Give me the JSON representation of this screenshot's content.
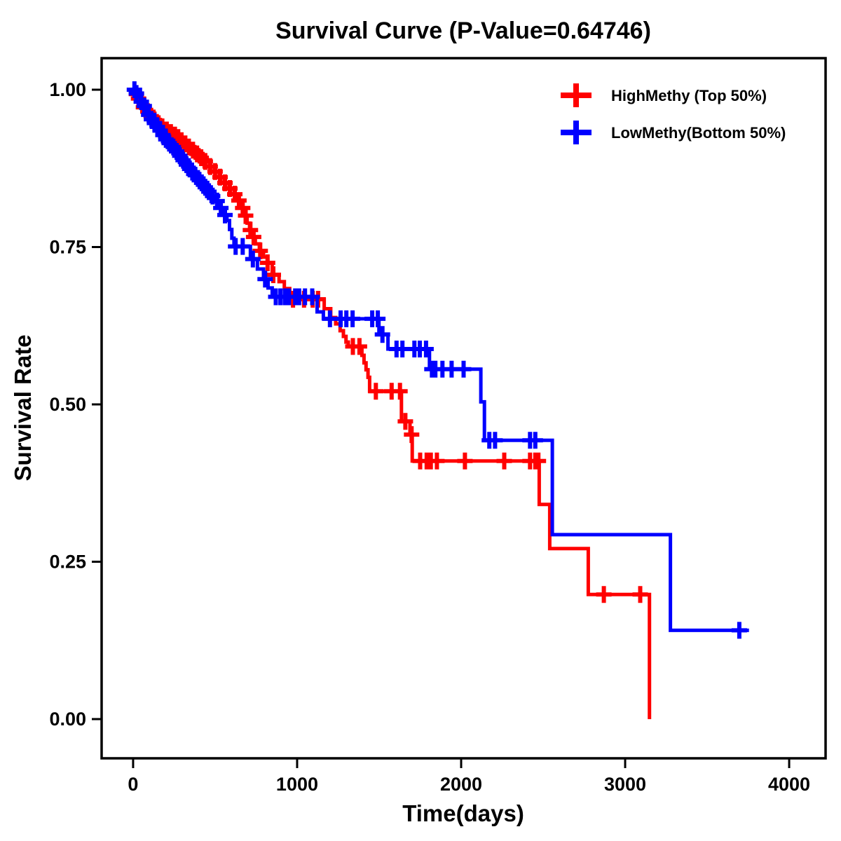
{
  "page": {
    "background": "#FFFFFF"
  },
  "chart_data": {
    "type": "line",
    "subtype": "kaplan-meier-step-curves",
    "title": "Survival Curve (P-Value=0.64746)",
    "p_value": "0.64746",
    "xlabel": "Time(days)",
    "ylabel": "Survival Rate",
    "xlim": [
      -192,
      4222
    ],
    "ylim": [
      -0.0623,
      1.0501
    ],
    "xticks": [
      0,
      1000,
      2000,
      3000,
      4000
    ],
    "xtick_labels": [
      "0",
      "1000",
      "2000",
      "3000",
      "4000"
    ],
    "yticks": [
      0,
      0.25,
      0.5,
      0.75,
      1
    ],
    "ytick_labels": [
      "0.00",
      "0.25",
      "0.50",
      "0.75",
      "1.00"
    ],
    "grid": false,
    "legend_position": "top-right",
    "frame_color": "#000000",
    "series": [
      {
        "name": "HighMethy (Top 50%)",
        "color": "#FF0000",
        "end_time": 3148,
        "steps": [
          [
            0,
            1.0
          ],
          [
            15,
            0.993
          ],
          [
            30,
            0.986
          ],
          [
            45,
            0.979
          ],
          [
            60,
            0.972
          ],
          [
            80,
            0.965
          ],
          [
            100,
            0.958
          ],
          [
            125,
            0.952
          ],
          [
            150,
            0.946
          ],
          [
            175,
            0.941
          ],
          [
            200,
            0.936
          ],
          [
            225,
            0.932
          ],
          [
            250,
            0.928
          ],
          [
            270,
            0.924
          ],
          [
            290,
            0.919
          ],
          [
            310,
            0.914
          ],
          [
            335,
            0.909
          ],
          [
            360,
            0.904
          ],
          [
            385,
            0.898
          ],
          [
            410,
            0.892
          ],
          [
            435,
            0.886
          ],
          [
            465,
            0.878
          ],
          [
            495,
            0.87
          ],
          [
            525,
            0.861
          ],
          [
            555,
            0.852
          ],
          [
            585,
            0.843
          ],
          [
            615,
            0.834
          ],
          [
            640,
            0.824
          ],
          [
            662,
            0.812
          ],
          [
            680,
            0.8
          ],
          [
            695,
            0.788
          ],
          [
            710,
            0.777
          ],
          [
            725,
            0.766
          ],
          [
            745,
            0.755
          ],
          [
            770,
            0.744
          ],
          [
            795,
            0.734
          ],
          [
            818,
            0.725
          ],
          [
            848,
            0.706
          ],
          [
            890,
            0.695
          ],
          [
            922,
            0.684
          ],
          [
            955,
            0.667
          ],
          [
            1165,
            0.652
          ],
          [
            1205,
            0.638
          ],
          [
            1235,
            0.628
          ],
          [
            1262,
            0.617
          ],
          [
            1282,
            0.608
          ],
          [
            1298,
            0.599
          ],
          [
            1312,
            0.592
          ],
          [
            1395,
            0.578
          ],
          [
            1408,
            0.566
          ],
          [
            1420,
            0.555
          ],
          [
            1432,
            0.543
          ],
          [
            1442,
            0.521
          ],
          [
            1636,
            0.473
          ],
          [
            1688,
            0.452
          ],
          [
            1702,
            0.41
          ],
          [
            2476,
            0.341
          ],
          [
            2540,
            0.271
          ],
          [
            2775,
            0.198
          ],
          [
            3148,
            0.0
          ]
        ],
        "censors": [
          [
            20,
            0.993
          ],
          [
            33,
            0.986
          ],
          [
            63,
            0.972
          ],
          [
            90,
            0.965
          ],
          [
            110,
            0.958
          ],
          [
            130,
            0.952
          ],
          [
            155,
            0.946
          ],
          [
            178,
            0.941
          ],
          [
            205,
            0.936
          ],
          [
            230,
            0.932
          ],
          [
            255,
            0.928
          ],
          [
            275,
            0.924
          ],
          [
            295,
            0.919
          ],
          [
            318,
            0.914
          ],
          [
            340,
            0.909
          ],
          [
            365,
            0.904
          ],
          [
            390,
            0.898
          ],
          [
            415,
            0.892
          ],
          [
            440,
            0.886
          ],
          [
            470,
            0.878
          ],
          [
            500,
            0.87
          ],
          [
            530,
            0.861
          ],
          [
            560,
            0.852
          ],
          [
            590,
            0.843
          ],
          [
            620,
            0.834
          ],
          [
            645,
            0.824
          ],
          [
            668,
            0.812
          ],
          [
            686,
            0.8
          ],
          [
            715,
            0.777
          ],
          [
            735,
            0.766
          ],
          [
            775,
            0.744
          ],
          [
            820,
            0.725
          ],
          [
            855,
            0.706
          ],
          [
            975,
            0.667
          ],
          [
            1042,
            0.667
          ],
          [
            1095,
            0.667
          ],
          [
            1128,
            0.667
          ],
          [
            1340,
            0.592
          ],
          [
            1380,
            0.592
          ],
          [
            1480,
            0.521
          ],
          [
            1576,
            0.521
          ],
          [
            1627,
            0.521
          ],
          [
            1660,
            0.473
          ],
          [
            1698,
            0.452
          ],
          [
            1750,
            0.41
          ],
          [
            1790,
            0.41
          ],
          [
            1815,
            0.41
          ],
          [
            1852,
            0.41
          ],
          [
            2023,
            0.41
          ],
          [
            2263,
            0.41
          ],
          [
            2420,
            0.41
          ],
          [
            2452,
            0.41
          ],
          [
            2471,
            0.41
          ],
          [
            2870,
            0.198
          ],
          [
            3092,
            0.198
          ]
        ]
      },
      {
        "name": "LowMethy(Bottom 50%)",
        "color": "#0000FF",
        "end_time": 3755,
        "steps": [
          [
            0,
            1.0
          ],
          [
            15,
            0.994
          ],
          [
            30,
            0.988
          ],
          [
            45,
            0.981
          ],
          [
            60,
            0.974
          ],
          [
            75,
            0.967
          ],
          [
            90,
            0.96
          ],
          [
            105,
            0.953
          ],
          [
            122,
            0.947
          ],
          [
            140,
            0.941
          ],
          [
            158,
            0.935
          ],
          [
            176,
            0.928
          ],
          [
            195,
            0.921
          ],
          [
            215,
            0.915
          ],
          [
            236,
            0.909
          ],
          [
            258,
            0.902
          ],
          [
            278,
            0.895
          ],
          [
            298,
            0.888
          ],
          [
            318,
            0.881
          ],
          [
            338,
            0.874
          ],
          [
            362,
            0.866
          ],
          [
            386,
            0.859
          ],
          [
            410,
            0.852
          ],
          [
            432,
            0.845
          ],
          [
            455,
            0.838
          ],
          [
            478,
            0.831
          ],
          [
            505,
            0.823
          ],
          [
            528,
            0.812
          ],
          [
            552,
            0.801
          ],
          [
            572,
            0.792
          ],
          [
            588,
            0.778
          ],
          [
            602,
            0.764
          ],
          [
            615,
            0.751
          ],
          [
            715,
            0.731
          ],
          [
            758,
            0.715
          ],
          [
            795,
            0.699
          ],
          [
            823,
            0.685
          ],
          [
            848,
            0.671
          ],
          [
            1122,
            0.647
          ],
          [
            1160,
            0.636
          ],
          [
            1499,
            0.611
          ],
          [
            1554,
            0.588
          ],
          [
            1807,
            0.556
          ],
          [
            2120,
            0.504
          ],
          [
            2142,
            0.443
          ],
          [
            2556,
            0.293
          ],
          [
            3276,
            0.141
          ]
        ],
        "censors": [
          [
            8,
            1.0
          ],
          [
            20,
            0.994
          ],
          [
            50,
            0.981
          ],
          [
            68,
            0.974
          ],
          [
            95,
            0.96
          ],
          [
            112,
            0.953
          ],
          [
            130,
            0.947
          ],
          [
            148,
            0.941
          ],
          [
            165,
            0.935
          ],
          [
            182,
            0.928
          ],
          [
            200,
            0.921
          ],
          [
            220,
            0.915
          ],
          [
            245,
            0.909
          ],
          [
            265,
            0.902
          ],
          [
            285,
            0.895
          ],
          [
            305,
            0.888
          ],
          [
            325,
            0.881
          ],
          [
            345,
            0.874
          ],
          [
            370,
            0.866
          ],
          [
            395,
            0.859
          ],
          [
            418,
            0.852
          ],
          [
            440,
            0.845
          ],
          [
            462,
            0.838
          ],
          [
            485,
            0.831
          ],
          [
            512,
            0.823
          ],
          [
            535,
            0.812
          ],
          [
            560,
            0.801
          ],
          [
            625,
            0.751
          ],
          [
            668,
            0.751
          ],
          [
            730,
            0.731
          ],
          [
            805,
            0.699
          ],
          [
            870,
            0.671
          ],
          [
            898,
            0.671
          ],
          [
            925,
            0.671
          ],
          [
            950,
            0.671
          ],
          [
            988,
            0.671
          ],
          [
            1012,
            0.671
          ],
          [
            1048,
            0.671
          ],
          [
            1092,
            0.671
          ],
          [
            1200,
            0.636
          ],
          [
            1265,
            0.636
          ],
          [
            1300,
            0.636
          ],
          [
            1338,
            0.636
          ],
          [
            1458,
            0.636
          ],
          [
            1492,
            0.636
          ],
          [
            1520,
            0.611
          ],
          [
            1606,
            0.588
          ],
          [
            1642,
            0.588
          ],
          [
            1715,
            0.588
          ],
          [
            1748,
            0.588
          ],
          [
            1786,
            0.588
          ],
          [
            1822,
            0.556
          ],
          [
            1843,
            0.556
          ],
          [
            1886,
            0.556
          ],
          [
            1942,
            0.556
          ],
          [
            2015,
            0.556
          ],
          [
            2172,
            0.443
          ],
          [
            2207,
            0.443
          ],
          [
            2420,
            0.443
          ],
          [
            2452,
            0.443
          ],
          [
            3696,
            0.141
          ]
        ]
      }
    ]
  }
}
